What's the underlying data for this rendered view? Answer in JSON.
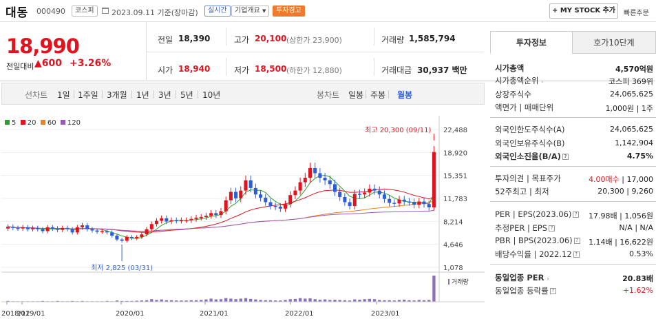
{
  "header": {
    "name": "대동",
    "code": "000490",
    "market_badge": "코스피",
    "date": "2023.09.11 기준(장마감)",
    "realtime_badge": "실시간",
    "overview_badge": "기업개요",
    "warning_badge": "투자경고",
    "mystock_label": "+ MY STOCK 추가",
    "quick_order": "빠른주문"
  },
  "price": {
    "current": "18,990",
    "change_label": "전일대비",
    "change_value": "▲600",
    "change_pct": "+3.26%",
    "prev_label": "전일",
    "prev_value": "18,390",
    "open_label": "시가",
    "open_value": "18,940",
    "high_label": "고가",
    "high_value": "20,100",
    "upper_limit": "(상한가 23,900)",
    "low_label": "저가",
    "low_value": "18,500",
    "lower_limit": "(하한가 12,880)",
    "volume_label": "거래량",
    "volume_value": "1,585,794",
    "amount_label": "거래대금",
    "amount_value": "30,937 백만"
  },
  "chart_tabs": {
    "line_chart": "선차트",
    "periods": [
      "1일",
      "1주일",
      "3개월",
      "1년",
      "3년",
      "5년",
      "10년"
    ],
    "candle_chart": "봉차트",
    "candles": [
      "일봉",
      "주봉",
      "월봉"
    ]
  },
  "chart_data": {
    "type": "candlestick",
    "legend": [
      "5",
      "20",
      "60",
      "120"
    ],
    "legend_colors": [
      "#2aa02a",
      "#e0141e",
      "#f08020",
      "#9b59b6"
    ],
    "y_ticks": [
      "22,488",
      "18,920",
      "15,351",
      "11,783",
      "8,214",
      "4,646",
      "1,078"
    ],
    "y_tick_values": [
      22488,
      18920,
      15351,
      11783,
      8214,
      4646,
      1078
    ],
    "x_ticks": [
      "2018/12",
      "2019/01",
      "2020/01",
      "2021/01",
      "2022/01",
      "2023/01"
    ],
    "max_annotation": "최고 20,300 (09/11)",
    "min_annotation": "최저 2,825 (03/31)",
    "volume_label": "거래량",
    "up_color": "#e0141e",
    "down_color": "#2d5ed7",
    "closes": [
      7400,
      7200,
      7100,
      7300,
      7000,
      7200,
      7000,
      6700,
      7300,
      7100,
      6900,
      7200,
      7000,
      6500,
      7300,
      7600,
      7000,
      6800,
      6600,
      6700,
      6500,
      6000,
      5400,
      5200,
      5800,
      5600,
      5800,
      6200,
      7000,
      7800,
      8300,
      8700,
      8200,
      8400,
      8300,
      8400,
      8400,
      8600,
      8800,
      8900,
      9100,
      9500,
      9200,
      9800,
      11500,
      12800,
      11800,
      13000,
      14600,
      13400,
      12400,
      11900,
      11200,
      10600,
      10500,
      10200,
      10900,
      12300,
      13000,
      14300,
      15000,
      16500,
      15700,
      15000,
      14600,
      14000,
      12800,
      12000,
      11200,
      10600,
      12500,
      12400,
      12700,
      13300,
      13000,
      12400,
      11700,
      11100,
      11000,
      11600,
      11300,
      11200,
      10800,
      11300,
      10900,
      10400,
      18990
    ],
    "volume_pct": [
      3,
      2,
      2,
      2,
      2,
      2,
      2,
      3,
      2,
      2,
      3,
      2,
      2,
      3,
      2,
      3,
      2,
      2,
      2,
      2,
      3,
      2,
      5,
      3,
      3,
      3,
      4,
      5,
      6,
      10,
      7,
      9,
      6,
      6,
      5,
      5,
      5,
      6,
      6,
      7,
      9,
      12,
      9,
      10,
      14,
      12,
      10,
      12,
      14,
      11,
      9,
      7,
      6,
      6,
      5,
      5,
      7,
      10,
      11,
      14,
      12,
      13,
      10,
      8,
      9,
      7,
      8,
      7,
      6,
      5,
      9,
      8,
      10,
      11,
      10,
      7,
      6,
      6,
      5,
      7,
      8,
      6,
      5,
      7,
      6,
      7,
      100
    ]
  },
  "right_panel": {
    "tab_active": "투자정보",
    "tab_other": "호가10단계",
    "rows1": [
      {
        "label": "시가총액",
        "value": "4,570억원"
      },
      {
        "label": "시가총액순위",
        "value": "코스피 369위"
      },
      {
        "label": "상장주식수",
        "value": "24,065,625"
      },
      {
        "label": "액면가 | 매매단위",
        "value": "1,000원 | 1주"
      }
    ],
    "rows2": [
      {
        "label": "외국인한도주식수(A)",
        "value": "24,065,625"
      },
      {
        "label": "외국인보유주식수(B)",
        "value": "1,142,904"
      },
      {
        "label": "외국인소진율(B/A)",
        "value": "4.75%"
      }
    ],
    "rows3": [
      {
        "label": "투자의견 | 목표주가",
        "value1": "4.00매수",
        "value2": "17,000"
      },
      {
        "label": "52주최고 | 최저",
        "value1": "20,300",
        "value2": "9,260"
      }
    ],
    "rows4": [
      {
        "label": "PER | EPS(2023.06)",
        "value1": "17.98배",
        "value2": "1,056원"
      },
      {
        "label": "추정PER | EPS",
        "value1": "N/A",
        "value2": "N/A"
      },
      {
        "label": "PBR | BPS(2023.06)",
        "value1": "1.14배",
        "value2": "16,622원"
      },
      {
        "label": "배당수익률 | 2022.12",
        "value": "0.53%"
      }
    ],
    "rows5": [
      {
        "label": "동일업종 PER",
        "value": "20.83배"
      },
      {
        "label": "동일업종 등락률",
        "value": "+1.62%"
      }
    ]
  }
}
